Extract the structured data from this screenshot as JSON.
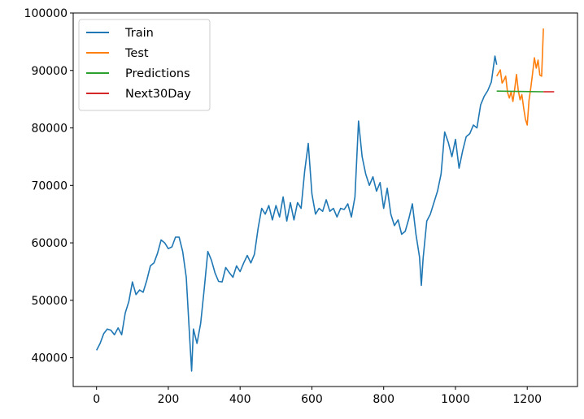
{
  "chart_data": {
    "type": "line",
    "title": "",
    "xlabel": "",
    "ylabel": "",
    "xlim": [
      -65,
      1340
    ],
    "ylim": [
      35000,
      100000
    ],
    "xticks": [
      0,
      200,
      400,
      600,
      800,
      1000,
      1200
    ],
    "yticks": [
      40000,
      50000,
      60000,
      70000,
      80000,
      90000,
      100000
    ],
    "grid": false,
    "legend_position": "top-left",
    "series": [
      {
        "name": "Train",
        "color": "#1f77b4",
        "points": [
          [
            0,
            41300
          ],
          [
            10,
            42500
          ],
          [
            20,
            44200
          ],
          [
            30,
            45000
          ],
          [
            40,
            44800
          ],
          [
            50,
            44000
          ],
          [
            60,
            45200
          ],
          [
            70,
            44000
          ],
          [
            80,
            47800
          ],
          [
            90,
            49800
          ],
          [
            100,
            53200
          ],
          [
            110,
            51000
          ],
          [
            120,
            51800
          ],
          [
            130,
            51400
          ],
          [
            140,
            53500
          ],
          [
            150,
            56000
          ],
          [
            160,
            56500
          ],
          [
            170,
            58200
          ],
          [
            180,
            60500
          ],
          [
            190,
            60000
          ],
          [
            200,
            59000
          ],
          [
            210,
            59300
          ],
          [
            220,
            61000
          ],
          [
            230,
            61000
          ],
          [
            240,
            58500
          ],
          [
            250,
            54000
          ],
          [
            260,
            43000
          ],
          [
            265,
            37700
          ],
          [
            270,
            45000
          ],
          [
            280,
            42500
          ],
          [
            290,
            46000
          ],
          [
            300,
            52000
          ],
          [
            310,
            58500
          ],
          [
            320,
            57000
          ],
          [
            330,
            54800
          ],
          [
            340,
            53300
          ],
          [
            350,
            53200
          ],
          [
            360,
            55700
          ],
          [
            370,
            54800
          ],
          [
            380,
            54000
          ],
          [
            390,
            56000
          ],
          [
            400,
            55000
          ],
          [
            410,
            56500
          ],
          [
            420,
            57800
          ],
          [
            430,
            56500
          ],
          [
            440,
            58000
          ],
          [
            450,
            62500
          ],
          [
            460,
            66000
          ],
          [
            470,
            65000
          ],
          [
            480,
            66500
          ],
          [
            490,
            64000
          ],
          [
            500,
            66500
          ],
          [
            510,
            64500
          ],
          [
            520,
            68000
          ],
          [
            530,
            63800
          ],
          [
            540,
            67000
          ],
          [
            550,
            64000
          ],
          [
            560,
            67000
          ],
          [
            570,
            66000
          ],
          [
            580,
            72500
          ],
          [
            590,
            77300
          ],
          [
            600,
            68500
          ],
          [
            610,
            65000
          ],
          [
            620,
            66000
          ],
          [
            630,
            65500
          ],
          [
            640,
            67500
          ],
          [
            650,
            65500
          ],
          [
            660,
            66000
          ],
          [
            670,
            64500
          ],
          [
            680,
            66000
          ],
          [
            690,
            65800
          ],
          [
            700,
            66800
          ],
          [
            710,
            64500
          ],
          [
            720,
            68000
          ],
          [
            730,
            81200
          ],
          [
            740,
            75000
          ],
          [
            750,
            72000
          ],
          [
            760,
            70000
          ],
          [
            770,
            71500
          ],
          [
            780,
            69000
          ],
          [
            790,
            70500
          ],
          [
            800,
            66000
          ],
          [
            810,
            69500
          ],
          [
            820,
            65000
          ],
          [
            830,
            63000
          ],
          [
            840,
            64000
          ],
          [
            850,
            61500
          ],
          [
            860,
            62000
          ],
          [
            870,
            64200
          ],
          [
            880,
            66800
          ],
          [
            890,
            61500
          ],
          [
            900,
            57500
          ],
          [
            905,
            52600
          ],
          [
            910,
            57300
          ],
          [
            920,
            63800
          ],
          [
            930,
            65000
          ],
          [
            940,
            67000
          ],
          [
            950,
            69000
          ],
          [
            960,
            72000
          ],
          [
            970,
            79300
          ],
          [
            980,
            77500
          ],
          [
            990,
            75000
          ],
          [
            1000,
            78000
          ],
          [
            1010,
            73000
          ],
          [
            1020,
            76000
          ],
          [
            1030,
            78500
          ],
          [
            1040,
            79000
          ],
          [
            1050,
            80500
          ],
          [
            1060,
            80000
          ],
          [
            1070,
            84000
          ],
          [
            1080,
            85500
          ],
          [
            1090,
            86500
          ],
          [
            1100,
            88000
          ],
          [
            1110,
            92500
          ],
          [
            1115,
            91000
          ]
        ]
      },
      {
        "name": "Test",
        "color": "#ff7f0e",
        "points": [
          [
            1115,
            89000
          ],
          [
            1125,
            90100
          ],
          [
            1130,
            87800
          ],
          [
            1135,
            88300
          ],
          [
            1140,
            89000
          ],
          [
            1145,
            86200
          ],
          [
            1150,
            85200
          ],
          [
            1155,
            86300
          ],
          [
            1160,
            84600
          ],
          [
            1165,
            86800
          ],
          [
            1170,
            89300
          ],
          [
            1175,
            86500
          ],
          [
            1180,
            84900
          ],
          [
            1185,
            85800
          ],
          [
            1190,
            83500
          ],
          [
            1195,
            81500
          ],
          [
            1200,
            80500
          ],
          [
            1205,
            84800
          ],
          [
            1210,
            87000
          ],
          [
            1215,
            89500
          ],
          [
            1220,
            92200
          ],
          [
            1225,
            90400
          ],
          [
            1230,
            91800
          ],
          [
            1235,
            89200
          ],
          [
            1240,
            89000
          ],
          [
            1245,
            97300
          ]
        ]
      },
      {
        "name": "Predictions",
        "color": "#2ca02c",
        "points": [
          [
            1115,
            86400
          ],
          [
            1245,
            86300
          ]
        ]
      },
      {
        "name": "Next30Day",
        "color": "#d62728",
        "points": [
          [
            1245,
            86300
          ],
          [
            1275,
            86300
          ]
        ]
      }
    ]
  }
}
